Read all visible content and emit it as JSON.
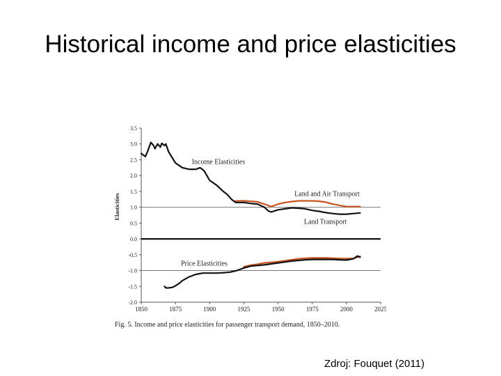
{
  "slide": {
    "title": "Historical income and price elasticities",
    "source": "Zdroj: Fouquet (2011)"
  },
  "chart_data": {
    "type": "line",
    "ylabel": "Elasticities",
    "caption": "Fig. 5. Income and price elasticities for passenger transport demand, 1850–2010.",
    "xlim": [
      1850,
      2025
    ],
    "ylim": [
      -2.0,
      3.5
    ],
    "xticks": [
      "1850",
      "1875",
      "1900",
      "1925",
      "1950",
      "1975",
      "2000",
      "2025"
    ],
    "yticks": [
      "3.5",
      "3.0",
      "2.5",
      "2.0",
      "1.5",
      "1.0",
      "0.5",
      "0.0",
      "-0.5",
      "-1.0",
      "-1.5",
      "-2.0"
    ],
    "reference_lines": [
      1.0,
      0.0,
      -1.0
    ],
    "annotations": [
      {
        "text": "Income Elasticities",
        "x": 1887,
        "y": 2.37
      },
      {
        "text": "Land and Air Transport",
        "x": 1962,
        "y": 1.35
      },
      {
        "text": "Land Transport",
        "x": 1969,
        "y": 0.48
      },
      {
        "text": "Price Elasticities",
        "x": 1879,
        "y": -0.84
      }
    ],
    "series": [
      {
        "color": "#c8531e",
        "x": [
          1919,
          1925,
          1930,
          1935,
          1940,
          1945,
          1950,
          1955,
          1960,
          1965,
          1970,
          1975,
          1980,
          1985,
          1990,
          1995,
          2000,
          2005,
          2010
        ],
        "y": [
          1.2,
          1.2,
          1.19,
          1.17,
          1.1,
          1.02,
          1.1,
          1.15,
          1.18,
          1.2,
          1.2,
          1.2,
          1.19,
          1.16,
          1.1,
          1.06,
          1.02,
          1.02,
          1.02
        ]
      },
      {
        "color": "#111111",
        "x": [
          1850,
          1853,
          1855,
          1857,
          1859,
          1860,
          1862,
          1864,
          1865,
          1867,
          1868,
          1870,
          1875,
          1880,
          1885,
          1890,
          1893,
          1896,
          1900,
          1905,
          1910,
          1913,
          1916,
          1919,
          1925,
          1930,
          1935,
          1940,
          1943,
          1945,
          1950,
          1955,
          1960,
          1965,
          1970,
          1975,
          1980,
          1985,
          1990,
          1995,
          2000,
          2005,
          2010
        ],
        "y": [
          2.7,
          2.6,
          2.8,
          3.05,
          2.95,
          2.85,
          3.0,
          2.9,
          3.02,
          2.95,
          3.0,
          2.75,
          2.4,
          2.25,
          2.2,
          2.2,
          2.25,
          2.15,
          1.85,
          1.7,
          1.5,
          1.4,
          1.25,
          1.15,
          1.15,
          1.12,
          1.1,
          1.0,
          0.88,
          0.85,
          0.92,
          0.95,
          0.98,
          0.97,
          0.95,
          0.9,
          0.87,
          0.83,
          0.8,
          0.78,
          0.78,
          0.8,
          0.82
        ]
      },
      {
        "color": "#c8531e",
        "x": [
          1925,
          1930,
          1935,
          1940,
          1945,
          1950,
          1955,
          1960,
          1965,
          1970,
          1975,
          1980,
          1985,
          1990,
          1995,
          2000,
          2005,
          2008,
          2010
        ],
        "y": [
          -0.88,
          -0.83,
          -0.8,
          -0.76,
          -0.74,
          -0.72,
          -0.69,
          -0.66,
          -0.63,
          -0.61,
          -0.6,
          -0.6,
          -0.6,
          -0.61,
          -0.62,
          -0.62,
          -0.62,
          -0.58,
          -0.55
        ]
      },
      {
        "color": "#111111",
        "x": [
          1867,
          1868,
          1870,
          1873,
          1875,
          1878,
          1880,
          1885,
          1890,
          1895,
          1900,
          1905,
          1910,
          1915,
          1920,
          1925,
          1930,
          1935,
          1940,
          1945,
          1950,
          1955,
          1960,
          1965,
          1970,
          1975,
          1980,
          1985,
          1990,
          1995,
          2000,
          2005,
          2008,
          2010
        ],
        "y": [
          -1.5,
          -1.55,
          -1.55,
          -1.53,
          -1.48,
          -1.4,
          -1.32,
          -1.2,
          -1.12,
          -1.08,
          -1.08,
          -1.08,
          -1.07,
          -1.05,
          -1.0,
          -0.92,
          -0.86,
          -0.84,
          -0.82,
          -0.79,
          -0.76,
          -0.73,
          -0.7,
          -0.68,
          -0.66,
          -0.65,
          -0.65,
          -0.65,
          -0.65,
          -0.66,
          -0.67,
          -0.63,
          -0.54,
          -0.58
        ]
      }
    ]
  }
}
